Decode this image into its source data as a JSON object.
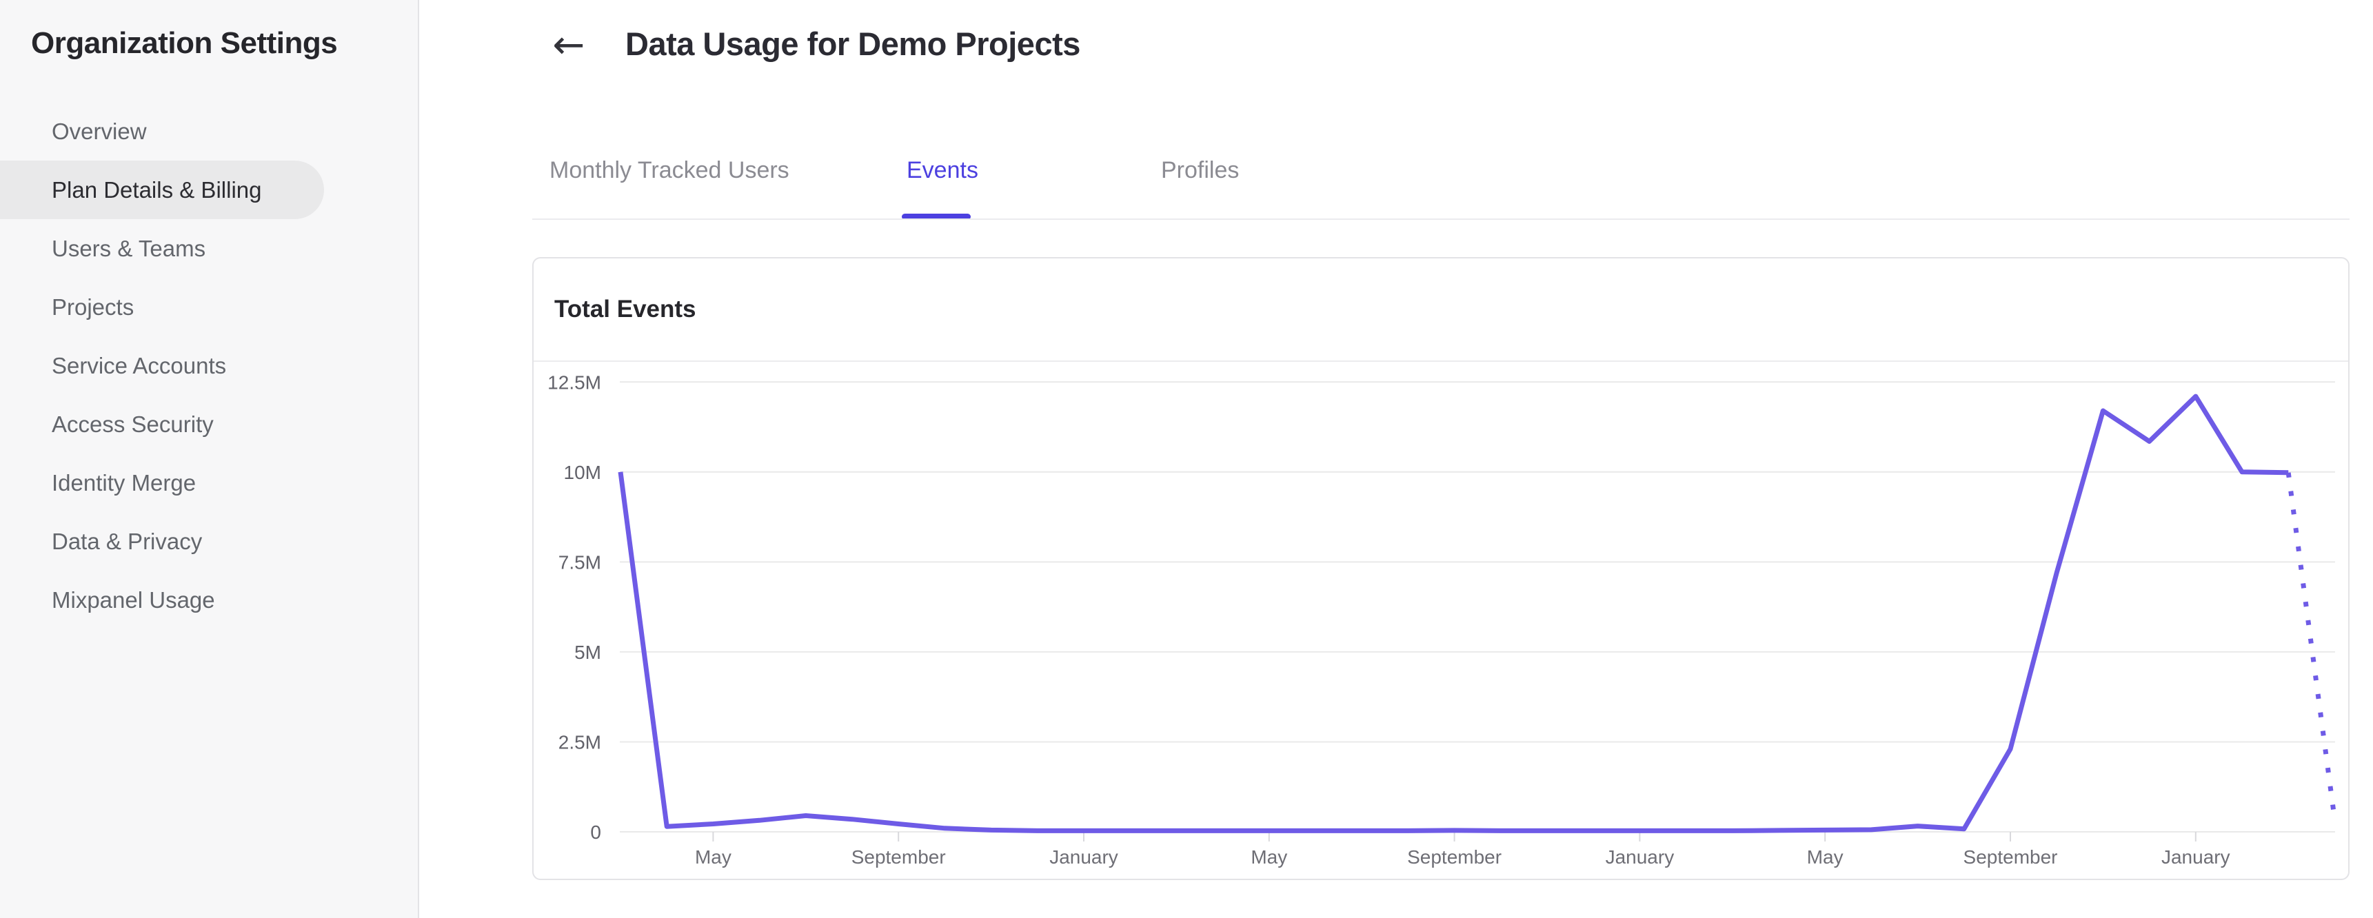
{
  "sidebar": {
    "title": "Organization Settings",
    "items": [
      {
        "label": "Overview",
        "active": false
      },
      {
        "label": "Plan Details & Billing",
        "active": true
      },
      {
        "label": "Users & Teams",
        "active": false
      },
      {
        "label": "Projects",
        "active": false
      },
      {
        "label": "Service Accounts",
        "active": false
      },
      {
        "label": "Access Security",
        "active": false
      },
      {
        "label": "Identity Merge",
        "active": false
      },
      {
        "label": "Data & Privacy",
        "active": false
      },
      {
        "label": "Mixpanel Usage",
        "active": false
      }
    ]
  },
  "header": {
    "back_icon": "←",
    "title": "Data Usage for Demo Projects"
  },
  "tabs": [
    {
      "label": "Monthly Tracked Users",
      "active": false
    },
    {
      "label": "Events",
      "active": true
    },
    {
      "label": "Profiles",
      "active": false
    }
  ],
  "card": {
    "title": "Total Events"
  },
  "chart_data": {
    "type": "line",
    "title": "Total Events",
    "ylabel": "",
    "xlabel": "",
    "unit": "millions of events",
    "ylim": [
      0,
      12.5
    ],
    "grid": true,
    "legend_position": "none",
    "y_tick_labels": [
      "12.5M",
      "10M",
      "7.5M",
      "5M",
      "2.5M",
      "0"
    ],
    "y_tick_values": [
      12.5,
      10,
      7.5,
      5,
      2.5,
      0
    ],
    "x_tick_labels": [
      "May",
      "September",
      "January",
      "May",
      "September",
      "January",
      "May",
      "September",
      "January"
    ],
    "x_tick_month_indices": [
      2,
      6,
      10,
      14,
      18,
      22,
      26,
      30,
      34
    ],
    "x_start_month": "March",
    "points_are_monthly": true,
    "values_millions": [
      10.0,
      0.15,
      0.22,
      0.32,
      0.45,
      0.35,
      0.22,
      0.1,
      0.05,
      0.03,
      0.03,
      0.03,
      0.03,
      0.03,
      0.03,
      0.03,
      0.03,
      0.03,
      0.04,
      0.03,
      0.03,
      0.03,
      0.03,
      0.03,
      0.03,
      0.04,
      0.05,
      0.06,
      0.16,
      0.08,
      2.3,
      7.2,
      11.7,
      10.85,
      12.1,
      10.0,
      9.98
    ],
    "projected_tail_millions": [
      9.98,
      0.35
    ],
    "projected_style": "dotted",
    "line_color": "#6e5be6",
    "grid_color": "#e9e9e9",
    "tick_color": "#d8d8dc",
    "axis_label_color": "#6e6e75"
  },
  "colors": {
    "accent": "#4c40e0",
    "sidebar_bg": "#f7f7f8",
    "selected_item_bg": "#e9e9ea",
    "card_border": "#e3e3e6",
    "text_dark": "#26262b",
    "text_gray": "#63666c"
  }
}
